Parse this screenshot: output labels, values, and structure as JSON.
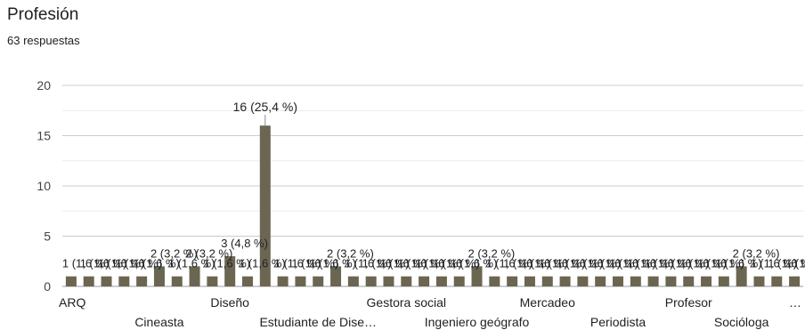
{
  "header": {
    "title": "Profesión",
    "response_count": "63 respuestas"
  },
  "chart_data": {
    "type": "bar",
    "title": "Profesión",
    "subtitle": "63 respuestas",
    "xlabel": "",
    "ylabel": "",
    "ylim": [
      0,
      20
    ],
    "yticks": [
      0,
      5,
      10,
      15,
      20
    ],
    "grid": true,
    "bar_color": "#6b6651",
    "values": [
      1,
      1,
      1,
      1,
      1,
      2,
      1,
      2,
      1,
      3,
      1,
      16,
      1,
      1,
      1,
      2,
      1,
      1,
      1,
      1,
      1,
      1,
      1,
      2,
      1,
      1,
      1,
      1,
      1,
      1,
      1,
      1,
      1,
      1,
      1,
      1,
      1,
      1,
      2,
      1,
      1,
      1
    ],
    "data_labels": [
      "1 (1,6 %)",
      "1 (1,6 %)",
      "1 (1,6 %)",
      "1 (1,6 %)",
      "1 (1,6 %)",
      "2 (3,2 %)",
      "1 (1,6 %)",
      "2 (3,2 %)",
      "1 (1,6 %)",
      "3 (4,8 %)",
      "1 (1,6 %)",
      "16 (25,4 %)",
      "1 (1,6 %)",
      "1 (1,6 %)",
      "1 (1,6 %)",
      "2 (3,2 %)",
      "1 (1,6 %)",
      "1 (1,6 %)",
      "1 (1,6 %)",
      "1 (1,6 %)",
      "1 (1,6 %)",
      "1 (1,6 %)",
      "1 (1,6 %)",
      "2 (3,2 %)",
      "1 (1,6 %)",
      "1 (1,6 %)",
      "1 (1,6 %)",
      "1 (1,6 %)",
      "1 (1,6 %)",
      "1 (1,6 %)",
      "1 (1,6 %)",
      "1 (1,6 %)",
      "1 (1,6 %)",
      "1 (1,6 %)",
      "1 (1,6 %)",
      "1 (1,6 %)",
      "1 (1,6 %)",
      "1 (1,6 %)",
      "2 (3,2 %)",
      "1 (1,6 %)",
      "1 (1,6 %)",
      "1 (1,6 %)"
    ],
    "x_tick_labels": [
      {
        "index": 0,
        "text": "ARQ",
        "row": 1
      },
      {
        "index": 5,
        "text": "Cineasta",
        "row": 2
      },
      {
        "index": 9,
        "text": "Diseño",
        "row": 1
      },
      {
        "index": 14,
        "text": "Estudiante de Dise…",
        "row": 2
      },
      {
        "index": 19,
        "text": "Gestora social",
        "row": 1
      },
      {
        "index": 23,
        "text": "Ingeniero geógrafo",
        "row": 2
      },
      {
        "index": 27,
        "text": "Mercadeo",
        "row": 1
      },
      {
        "index": 31,
        "text": "Periodista",
        "row": 2
      },
      {
        "index": 35,
        "text": "Profesor",
        "row": 1
      },
      {
        "index": 38,
        "text": "Socióloga",
        "row": 2
      },
      {
        "index": 41,
        "text": "…",
        "row": 1
      }
    ]
  }
}
